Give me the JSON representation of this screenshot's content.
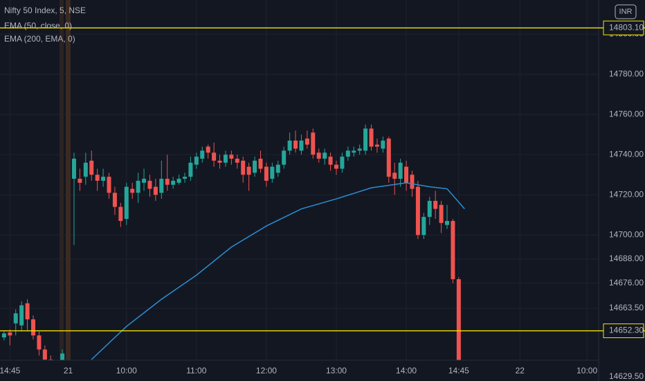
{
  "chart_data": {
    "type": "candlestick",
    "title": "Nifty 50 Index, 5, NSE",
    "currency": "INR",
    "up_color": "#26a69a",
    "down_color": "#ef5350",
    "candles": {
      "x": [
        -3,
        -2,
        -1,
        0,
        1,
        2,
        3,
        4,
        5,
        6,
        7,
        9,
        10,
        11,
        12,
        13,
        14,
        15,
        16,
        17,
        18,
        19,
        20,
        21,
        22,
        23,
        24,
        25,
        26,
        27,
        28,
        29,
        30,
        31,
        32,
        33,
        34,
        35,
        36,
        37,
        38,
        39,
        40,
        41,
        42,
        43,
        44,
        45,
        46,
        47,
        48,
        49,
        50,
        51,
        52,
        53,
        54,
        55,
        56,
        57,
        58,
        59,
        60,
        61,
        62,
        63,
        64,
        65,
        66,
        67,
        68,
        69,
        70,
        71,
        72,
        73,
        74,
        75
      ],
      "ohlc": [
        [
          14649,
          14652.5,
          14647.5,
          14651
        ],
        [
          14651.5,
          14653,
          14645,
          14650
        ],
        [
          14656,
          14663,
          14650,
          14661
        ],
        [
          14655,
          14667,
          14652,
          14665
        ],
        [
          14666,
          14668,
          14652,
          14658
        ],
        [
          14658,
          14660,
          14648,
          14650
        ],
        [
          14650,
          14652,
          14640,
          14643
        ],
        [
          14643,
          14645,
          14636,
          14638
        ],
        [
          14638,
          14640,
          14630,
          14632
        ],
        [
          14632,
          14634,
          14628,
          14629
        ],
        [
          14634,
          14643,
          14630,
          14641
        ],
        [
          14728,
          14741,
          14695,
          14738
        ],
        [
          14728,
          14733,
          14722,
          14726
        ],
        [
          14729,
          14741,
          14725,
          14736
        ],
        [
          14737,
          14742,
          14727,
          14730
        ],
        [
          14730,
          14733,
          14722,
          14727
        ],
        [
          14727,
          14733,
          14724,
          14729
        ],
        [
          14729,
          14731,
          14718,
          14721
        ],
        [
          14721,
          14724,
          14710,
          14714
        ],
        [
          14714,
          14716,
          14704,
          14707
        ],
        [
          14708,
          14726,
          14705,
          14724
        ],
        [
          14723,
          14726,
          14718,
          14721
        ],
        [
          14721,
          14731,
          14716,
          14727
        ],
        [
          14726,
          14733,
          14722,
          14728
        ],
        [
          14727,
          14730,
          14719,
          14723
        ],
        [
          14724,
          14728,
          14717,
          14720
        ],
        [
          14721,
          14737,
          14718,
          14728
        ],
        [
          14728,
          14740,
          14722,
          14725
        ],
        [
          14725,
          14729,
          14723,
          14727
        ],
        [
          14726,
          14730,
          14725,
          14728
        ],
        [
          14728,
          14731,
          14726,
          14729
        ],
        [
          14729,
          14739,
          14727,
          14736
        ],
        [
          14735,
          14741,
          14733,
          14739
        ],
        [
          14738,
          14744,
          14736,
          14742
        ],
        [
          14744,
          14745,
          14738,
          14741
        ],
        [
          14741,
          14746,
          14734,
          14737
        ],
        [
          14737,
          14740,
          14733,
          14736
        ],
        [
          14736,
          14742,
          14734,
          14740
        ],
        [
          14740,
          14742,
          14735,
          14738
        ],
        [
          14738,
          14740,
          14733,
          14736
        ],
        [
          14737,
          14739,
          14726,
          14730
        ],
        [
          14734,
          14736,
          14722,
          14730
        ],
        [
          14731,
          14739,
          14729,
          14737
        ],
        [
          14738,
          14742,
          14731,
          14733
        ],
        [
          14734,
          14736,
          14724,
          14727
        ],
        [
          14728,
          14736,
          14726,
          14734
        ],
        [
          14731,
          14737,
          14729,
          14735
        ],
        [
          14735,
          14744,
          14733,
          14742
        ],
        [
          14742,
          14751,
          14740,
          14747
        ],
        [
          14747,
          14752,
          14741,
          14743
        ],
        [
          14742,
          14750,
          14740,
          14747
        ],
        [
          14748,
          14752,
          14743,
          14745
        ],
        [
          14751,
          14753,
          14738,
          14740
        ],
        [
          14741,
          14743,
          14736,
          14738
        ],
        [
          14738,
          14743,
          14735,
          14741
        ],
        [
          14739,
          14741,
          14732,
          14735
        ],
        [
          14735,
          14737,
          14730,
          14733
        ],
        [
          14733,
          14741,
          14731,
          14739
        ],
        [
          14739,
          14744,
          14737,
          14742
        ],
        [
          14741,
          14744,
          14739,
          14742
        ],
        [
          14742,
          14745,
          14740,
          14743
        ],
        [
          14742,
          14755,
          14740,
          14753
        ],
        [
          14753,
          14755,
          14742,
          14744
        ],
        [
          14745,
          14748,
          14741,
          14744
        ],
        [
          14743,
          14749,
          14741,
          14747
        ],
        [
          14748,
          14749,
          14726,
          14729
        ],
        [
          14731,
          14736,
          14720,
          14728
        ],
        [
          14728,
          14738,
          14724,
          14736
        ],
        [
          14734,
          14737,
          14722,
          14726
        ],
        [
          14730,
          14732,
          14719,
          14723
        ],
        [
          14724,
          14727,
          14698,
          14700
        ],
        [
          14700,
          14711,
          14698,
          14709
        ],
        [
          14709,
          14719,
          14705,
          14717
        ],
        [
          14717,
          14722,
          14708,
          14713
        ],
        [
          14715,
          14717,
          14701,
          14706
        ],
        [
          14705,
          14715,
          14703,
          14707
        ],
        [
          14707,
          14708,
          14676,
          14678
        ],
        [
          14678,
          14679,
          14624,
          14626
        ]
      ]
    },
    "series": [
      {
        "name": "EMA (50, close, 0)",
        "color": "#2a8fd4",
        "x": [
          12,
          18,
          24,
          30,
          36,
          42,
          48,
          54,
          60,
          66,
          70,
          73,
          76
        ],
        "values": [
          14638,
          14654.5,
          14668,
          14680,
          14694,
          14704.5,
          14713,
          14718,
          14723.5,
          14726,
          14724,
          14723,
          14713
        ]
      },
      {
        "name": "EMA (200, EMA, 0)"
      }
    ],
    "hlines": [
      {
        "value": 14803.1,
        "label": "14803.10",
        "color": "#f5e400"
      },
      {
        "value": 14652.3,
        "label": "14652.30",
        "color": "#f5e400"
      }
    ],
    "xlim": [
      -3.7,
      99
    ],
    "ylim": [
      14628,
      14817
    ],
    "yticks": [
      {
        "value": 14629.5,
        "label": "14629.50"
      },
      {
        "value": 14663.5,
        "label": "14663.50"
      },
      {
        "value": 14676,
        "label": "14676.00"
      },
      {
        "value": 14688,
        "label": "14688.00"
      },
      {
        "value": 14700,
        "label": "14700.00"
      },
      {
        "value": 14720,
        "label": "14720.00"
      },
      {
        "value": 14740,
        "label": "14740.00"
      },
      {
        "value": 14760,
        "label": "14760.00"
      },
      {
        "value": 14780,
        "label": "14780.00"
      },
      {
        "value": 14800,
        "label": "14800.00"
      }
    ],
    "xticks": [
      {
        "value": -2,
        "label": "14:45"
      },
      {
        "value": 8,
        "label": "21"
      },
      {
        "value": 18,
        "label": "10:00"
      },
      {
        "value": 30,
        "label": "11:00"
      },
      {
        "value": 42,
        "label": "12:00"
      },
      {
        "value": 54,
        "label": "13:00"
      },
      {
        "value": 66,
        "label": "14:00"
      },
      {
        "value": 75,
        "label": "14:45"
      },
      {
        "value": 85.5,
        "label": "22"
      },
      {
        "value": 97,
        "label": "10:00"
      }
    ],
    "grid": true
  }
}
